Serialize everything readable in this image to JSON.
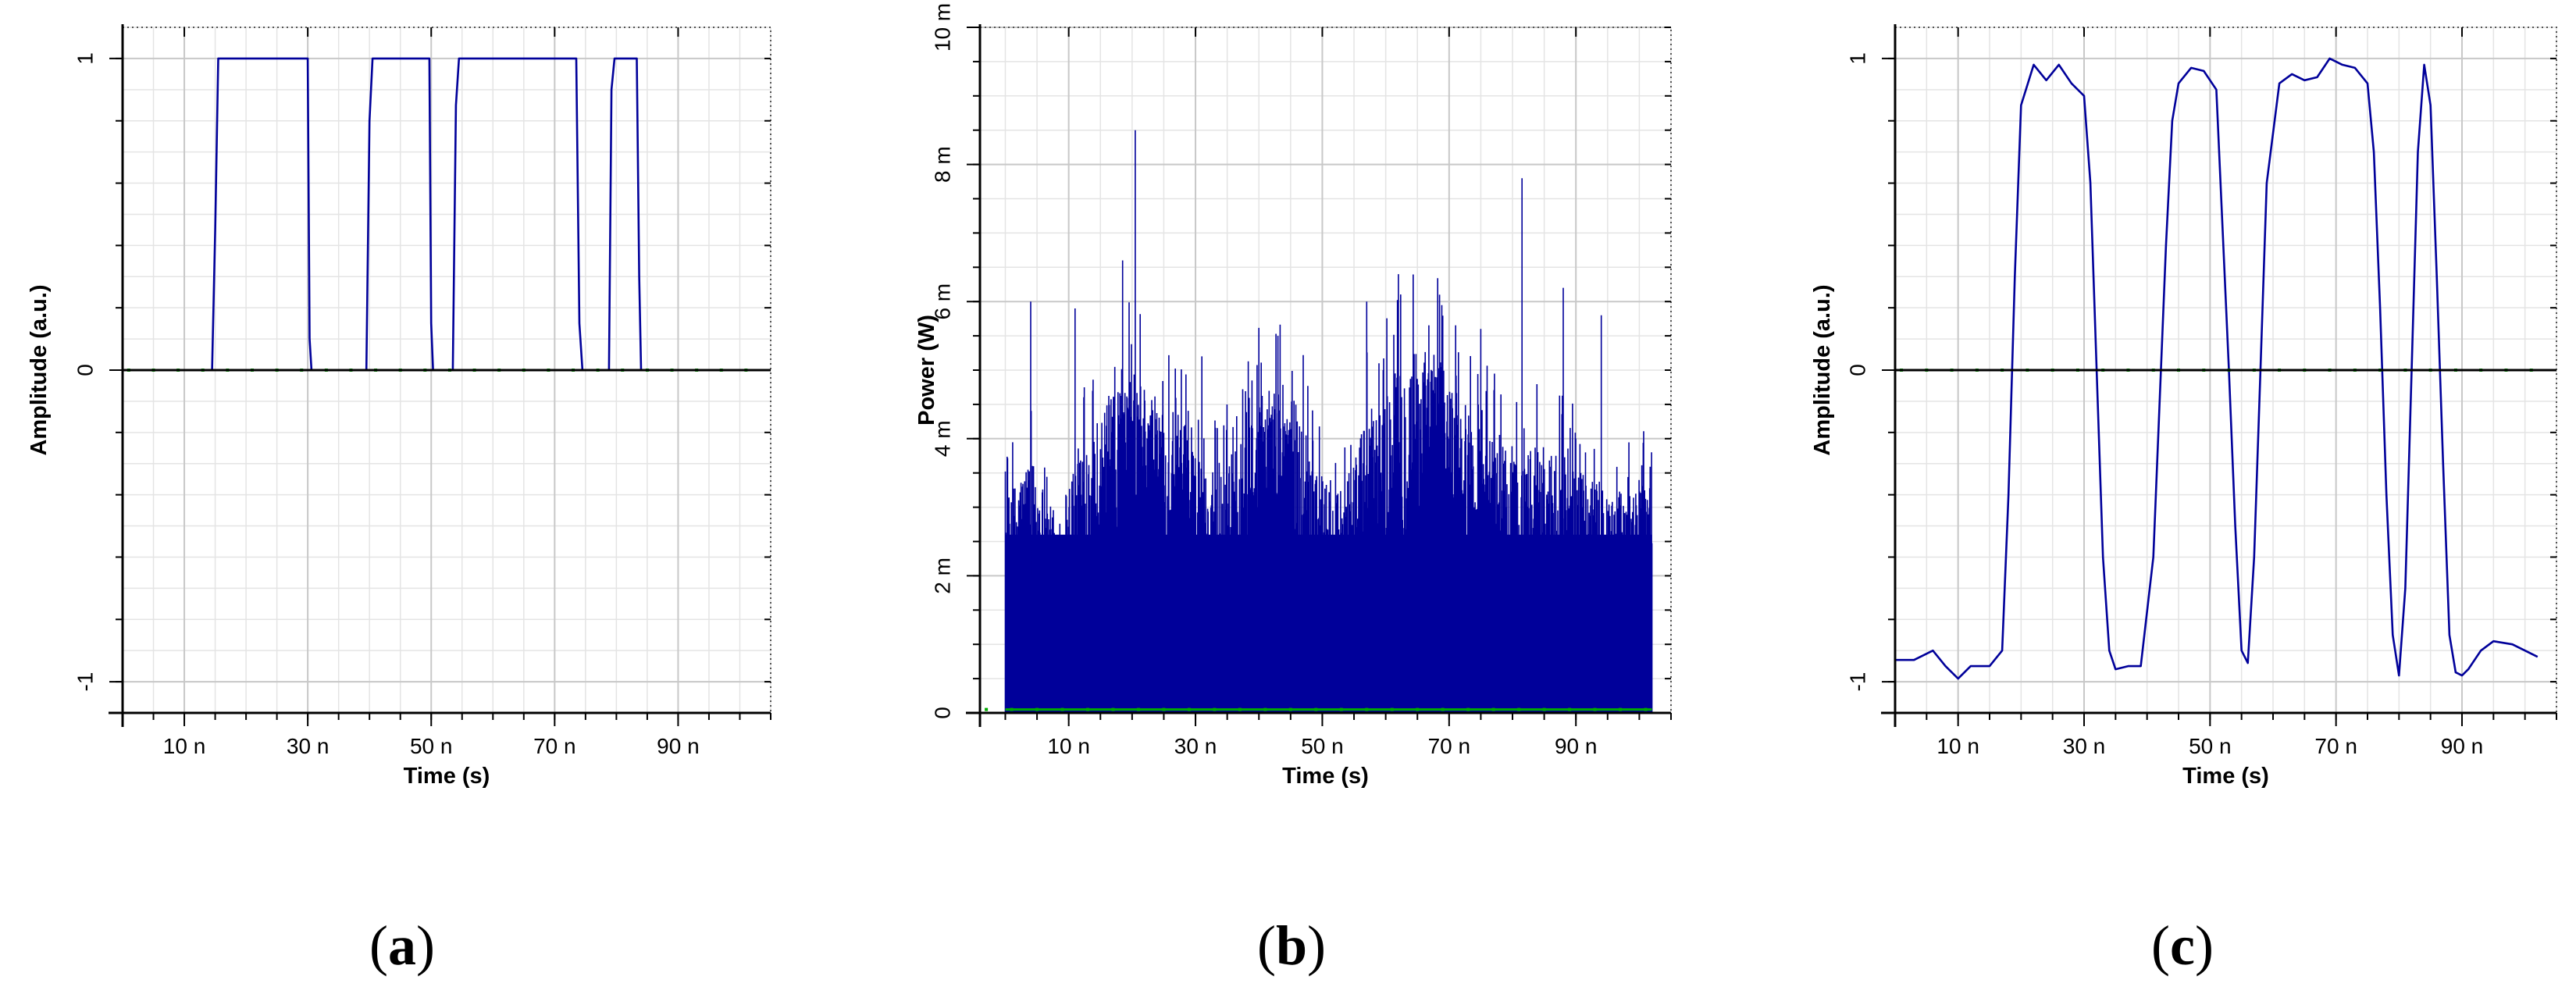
{
  "chart_data": [
    {
      "panel": "(a)",
      "type": "line",
      "xlabel": "Time (s)",
      "ylabel": "Amplitude (a.u.)",
      "xlim": [
        0,
        105
      ],
      "ylim": [
        -1.1,
        1.1
      ],
      "xticks": [
        10,
        30,
        50,
        70,
        90
      ],
      "xtick_labels": [
        "10 n",
        "30 n",
        "50 n",
        "70 n",
        "90 n"
      ],
      "yticks": [
        -1,
        0,
        1
      ],
      "ytick_labels": [
        "-1",
        "0",
        "1"
      ],
      "grid": true,
      "series": [
        {
          "color": "#00009a",
          "x": [
            0,
            14.5,
            15,
            15.5,
            30,
            30.3,
            30.6,
            39.5,
            40,
            40.5,
            49.7,
            50,
            50.3,
            53.5,
            54,
            54.5,
            73.5,
            74,
            74.5,
            78.8,
            79.2,
            79.7,
            83.3,
            83.7,
            84,
            105
          ],
          "y": [
            0,
            0,
            0.45,
            1,
            1,
            0.1,
            0,
            0,
            0.8,
            1,
            1,
            0.15,
            0,
            0,
            0.85,
            1,
            1,
            0.15,
            0,
            0,
            0.9,
            1,
            1,
            0.3,
            0,
            0
          ]
        },
        {
          "color": "#00aa00",
          "x": [
            0,
            105
          ],
          "y": [
            0,
            0
          ]
        }
      ]
    },
    {
      "panel": "(b)",
      "type": "bar",
      "xlabel": "Time (s)",
      "ylabel": "Power (W)",
      "xlim": [
        -4,
        105
      ],
      "ylim": [
        0,
        10
      ],
      "xticks": [
        10,
        30,
        50,
        70,
        90
      ],
      "xtick_labels": [
        "10 n",
        "30 n",
        "50 n",
        "70 n",
        "90 n"
      ],
      "yticks": [
        0,
        2,
        4,
        6,
        8,
        10
      ],
      "ytick_labels": [
        "0",
        "2 m",
        "4 m",
        "6 m",
        "8 m",
        "10 m"
      ],
      "grid": true,
      "series": [
        {
          "color": "#00009a",
          "x_range": [
            0,
            102
          ],
          "x": [
            0,
            4,
            8,
            12,
            16,
            20,
            24,
            28,
            32,
            36,
            40,
            44,
            48,
            52,
            56,
            60,
            64,
            68,
            72,
            76,
            80,
            84,
            88,
            92,
            96,
            100,
            102
          ],
          "y": [
            3.1,
            3.8,
            2.9,
            4.0,
            4.5,
            5.0,
            4.6,
            4.3,
            3.4,
            3.7,
            4.5,
            5.0,
            4.0,
            3.1,
            4.1,
            4.6,
            5.3,
            5.3,
            4.6,
            4.1,
            3.8,
            3.9,
            3.8,
            3.4,
            3.1,
            3.5,
            3.5
          ],
          "peak_x": [
            4,
            11,
            18.5,
            20.5,
            31,
            43,
            57,
            62,
            68.5,
            75,
            81.5,
            88,
            94
          ],
          "peak_y": [
            6.0,
            5.9,
            6.6,
            8.5,
            5.2,
            5.5,
            6.0,
            6.4,
            6.1,
            5.6,
            7.8,
            6.2,
            5.8
          ]
        },
        {
          "color": "#00aa00",
          "x": [
            0,
            102
          ],
          "y": [
            0.05,
            0.05
          ]
        }
      ]
    },
    {
      "panel": "(c)",
      "type": "line",
      "xlabel": "Time (s)",
      "ylabel": "Amplitude (a.u.)",
      "xlim": [
        0,
        105
      ],
      "ylim": [
        -1.1,
        1.1
      ],
      "xticks": [
        10,
        30,
        50,
        70,
        90
      ],
      "xtick_labels": [
        "10 n",
        "30 n",
        "50 n",
        "70 n",
        "90 n"
      ],
      "yticks": [
        -1,
        0,
        1
      ],
      "ytick_labels": [
        "-1",
        "0",
        "1"
      ],
      "grid": true,
      "series": [
        {
          "color": "#00009a",
          "x": [
            0,
            3,
            6,
            8,
            10,
            12,
            15,
            17,
            18,
            19,
            20,
            22,
            24,
            26,
            28,
            30,
            31,
            32,
            33,
            34,
            35,
            37,
            39,
            41,
            42,
            43,
            44,
            45,
            47,
            49,
            51,
            53,
            54,
            55,
            56,
            57,
            58,
            59,
            61,
            63,
            65,
            67,
            69,
            71,
            73,
            75,
            76,
            77,
            78,
            79,
            80,
            81,
            82,
            83,
            84,
            85,
            86,
            87,
            88,
            89,
            90,
            91,
            93,
            95,
            98,
            100,
            102
          ],
          "y": [
            -0.93,
            -0.93,
            -0.9,
            -0.95,
            -0.99,
            -0.95,
            -0.95,
            -0.9,
            -0.4,
            0.3,
            0.85,
            0.98,
            0.93,
            0.98,
            0.92,
            0.88,
            0.6,
            0.0,
            -0.6,
            -0.9,
            -0.96,
            -0.95,
            -0.95,
            -0.6,
            -0.1,
            0.4,
            0.8,
            0.92,
            0.97,
            0.96,
            0.9,
            0.0,
            -0.5,
            -0.9,
            -0.94,
            -0.6,
            0.0,
            0.6,
            0.92,
            0.95,
            0.93,
            0.94,
            1.0,
            0.98,
            0.97,
            0.92,
            0.7,
            0.2,
            -0.4,
            -0.85,
            -0.98,
            -0.7,
            0.0,
            0.7,
            0.98,
            0.85,
            0.3,
            -0.3,
            -0.85,
            -0.97,
            -0.98,
            -0.96,
            -0.9,
            -0.87,
            -0.88,
            -0.9,
            -0.92
          ]
        },
        {
          "color": "#00aa00",
          "x": [
            0,
            105
          ],
          "y": [
            0,
            0
          ]
        }
      ]
    }
  ]
}
